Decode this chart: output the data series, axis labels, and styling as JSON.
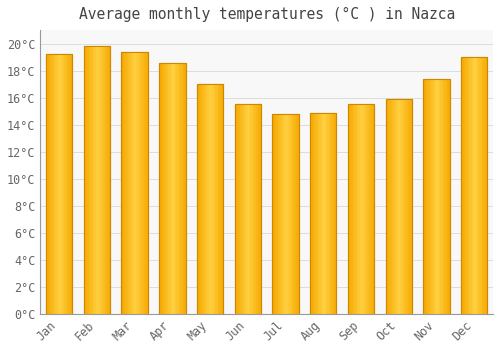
{
  "title": "Average monthly temperatures (°C ) in Nazca",
  "months": [
    "Jan",
    "Feb",
    "Mar",
    "Apr",
    "May",
    "Jun",
    "Jul",
    "Aug",
    "Sep",
    "Oct",
    "Nov",
    "Dec"
  ],
  "values": [
    19.2,
    19.8,
    19.4,
    18.6,
    17.0,
    15.5,
    14.8,
    14.9,
    15.5,
    15.9,
    17.4,
    19.0
  ],
  "bar_color_center": "#FFD040",
  "bar_color_edge": "#F5A800",
  "bar_edge_color": "#CC8800",
  "background_color": "#FFFFFF",
  "plot_bg_color": "#F8F8F8",
  "grid_color": "#DDDDDD",
  "text_color": "#666666",
  "title_color": "#444444",
  "ylim": [
    0,
    21
  ],
  "yticks": [
    0,
    2,
    4,
    6,
    8,
    10,
    12,
    14,
    16,
    18,
    20
  ],
  "title_fontsize": 10.5,
  "tick_fontsize": 8.5,
  "bar_width": 0.7
}
